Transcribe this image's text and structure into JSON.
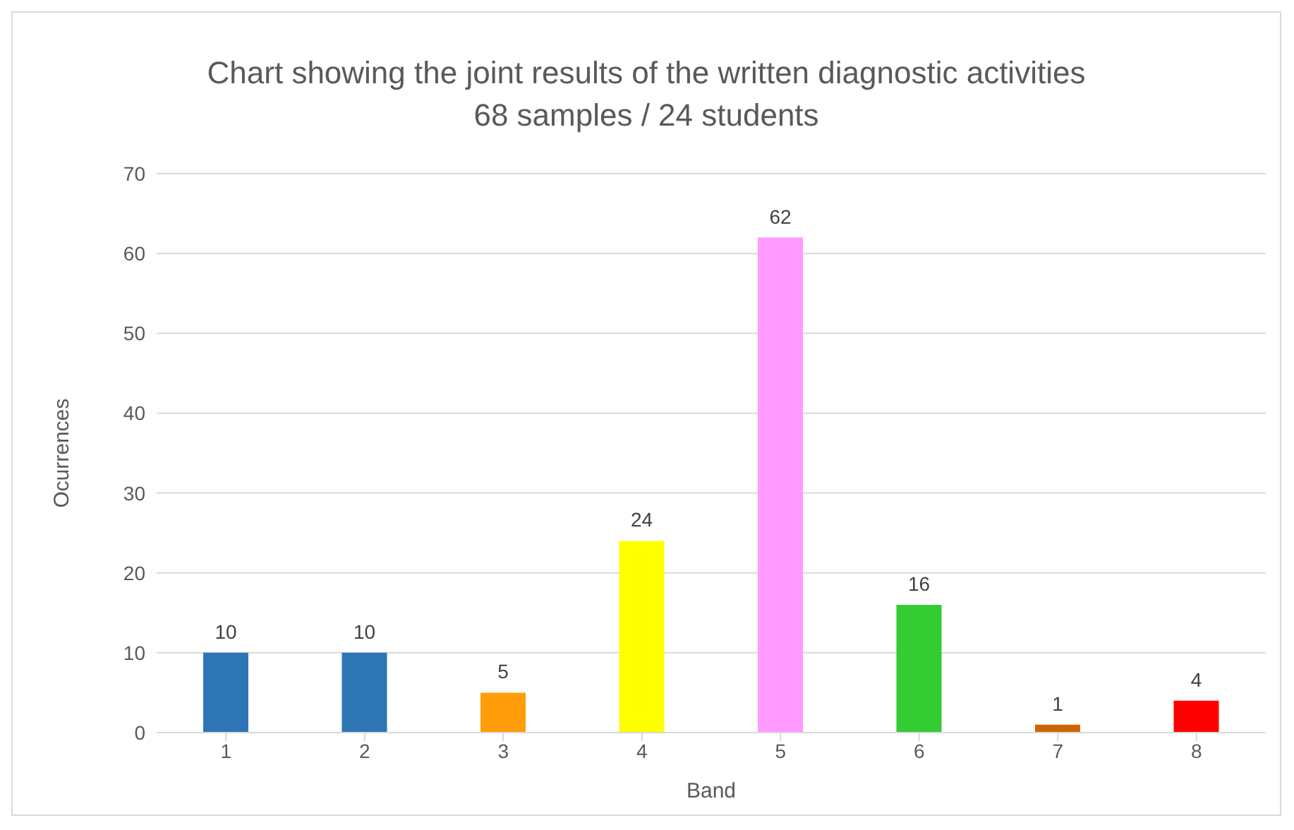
{
  "chart_data": {
    "type": "bar",
    "title": "Chart showing the joint results of the written diagnostic activities",
    "subtitle": "68 samples / 24 students",
    "xlabel": "Band",
    "ylabel": "Ocurrences",
    "categories": [
      "1",
      "2",
      "3",
      "4",
      "5",
      "6",
      "7",
      "8"
    ],
    "values": [
      10,
      10,
      5,
      24,
      62,
      16,
      1,
      4
    ],
    "colors": [
      "#2e75b6",
      "#2e75b6",
      "#ff9d0a",
      "#ffff00",
      "#ff99ff",
      "#33cc33",
      "#cc6600",
      "#ff0000"
    ],
    "ylim": [
      0,
      70
    ],
    "yticks": [
      0,
      10,
      20,
      30,
      40,
      50,
      60,
      70
    ],
    "grid": "y",
    "data_labels": true
  }
}
